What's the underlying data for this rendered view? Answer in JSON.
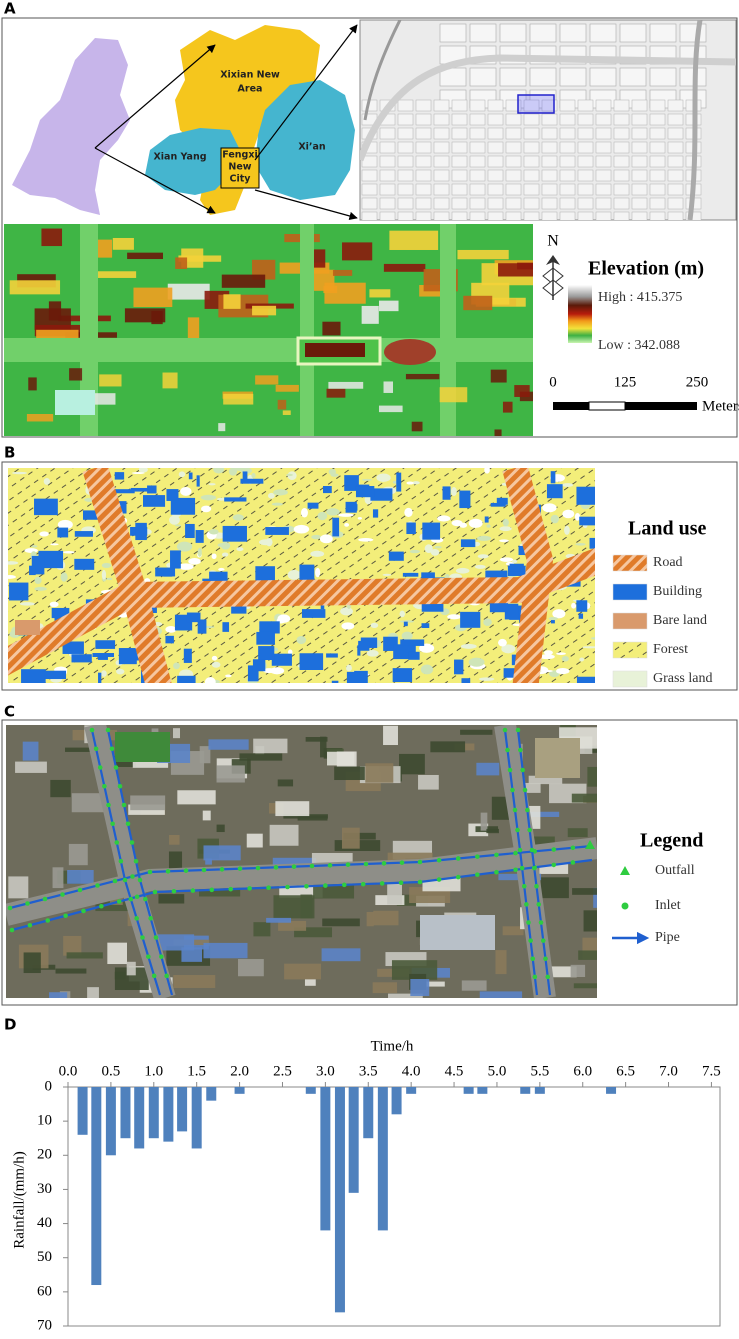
{
  "panel_a": {
    "label": "A",
    "map_labels": {
      "xixian": [
        "Xixian New",
        "Area"
      ],
      "xianyang": "Xian Yang",
      "fengxi": [
        "Fengxi",
        "New",
        "City"
      ],
      "xian": "Xi’an"
    },
    "north": "N",
    "legend": {
      "title": "Elevation (m)",
      "high": "High : 415.375",
      "low": "Low : 342.088"
    },
    "scale": {
      "ticks": [
        0,
        125,
        250
      ],
      "unit": "Meters"
    }
  },
  "panel_b": {
    "label": "B",
    "legend": {
      "title": "Land use",
      "items": [
        "Road",
        "Building",
        "Bare land",
        "Forest",
        "Grass land"
      ]
    }
  },
  "panel_c": {
    "label": "C",
    "legend": {
      "title": "Legend",
      "items": [
        "Outfall",
        "Inlet",
        "Pipe"
      ]
    }
  },
  "chart_data": {
    "type": "bar",
    "label": "D",
    "x_label": "Time/h",
    "y_label": "Rainfall/(mm/h)",
    "x": [
      0.17,
      0.33,
      0.5,
      0.67,
      0.83,
      1.0,
      1.17,
      1.33,
      1.5,
      1.67,
      2.0,
      2.83,
      3.0,
      3.17,
      3.33,
      3.5,
      3.67,
      3.83,
      4.0,
      4.67,
      4.83,
      5.33,
      5.5,
      6.33
    ],
    "values": [
      14,
      58,
      20,
      15,
      18,
      15,
      16,
      13,
      18,
      4,
      2,
      2,
      42,
      66,
      31,
      15,
      42,
      8,
      2,
      2,
      2,
      2,
      2,
      2
    ],
    "color": "#4f81bd",
    "xlim": [
      0,
      7.6
    ],
    "xticks": [
      {
        "value": 0,
        "label": "0.0"
      },
      0.5,
      {
        "value": 1,
        "label": "1.0"
      },
      1.5,
      {
        "value": 2,
        "label": "2.0"
      },
      2.5,
      {
        "value": 3,
        "label": "3.0"
      },
      3.5,
      {
        "value": 4,
        "label": "4.0"
      },
      4.5,
      {
        "value": 5,
        "label": "5.0"
      },
      5.5,
      {
        "value": 6,
        "label": "6.0"
      },
      6.5,
      {
        "value": 7,
        "label": "7.0"
      },
      7.5
    ],
    "ylim": [
      0,
      70
    ],
    "yticks": [
      0,
      10,
      20,
      30,
      40,
      50,
      60,
      70
    ],
    "y_inverted": true,
    "x_axis_position": "top",
    "grid": false
  }
}
